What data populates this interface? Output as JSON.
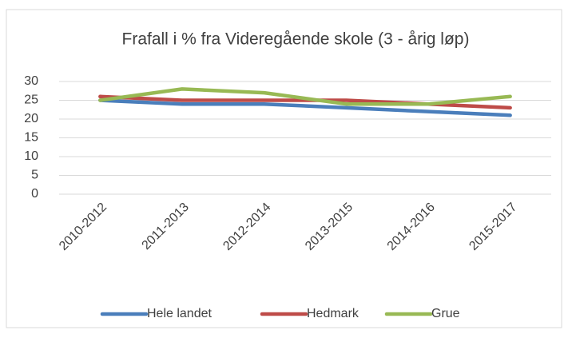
{
  "chart_data": {
    "type": "line",
    "title": "Frafall i % fra Videregående skole (3 - årig løp)",
    "categories": [
      "2010-2012",
      "2011-2013",
      "2012-2014",
      "2013-2015",
      "2014-2016",
      "2015-2017"
    ],
    "series": [
      {
        "name": "Hele landet",
        "color": "#4a7ebb",
        "values": [
          25,
          24,
          24,
          23,
          22,
          21
        ]
      },
      {
        "name": "Hedmark",
        "color": "#be4b48",
        "values": [
          26,
          25,
          25,
          25,
          24,
          23
        ]
      },
      {
        "name": "Grue",
        "color": "#98b954",
        "values": [
          25,
          28,
          27,
          24,
          24,
          26
        ]
      }
    ],
    "ylim": [
      0,
      30
    ],
    "yticks": [
      0,
      5,
      10,
      15,
      20,
      25,
      30
    ],
    "grid": true,
    "legend": "bottom"
  }
}
